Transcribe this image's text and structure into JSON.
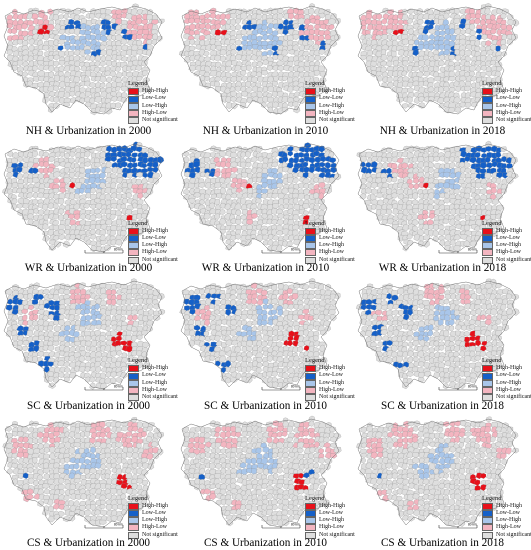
{
  "colors": {
    "high_high": "#e8101a",
    "low_low": "#1560c8",
    "low_high": "#a9c6ea",
    "high_low": "#f3b5c0",
    "not_significant": "#dedede",
    "border": "#8a8a8a"
  },
  "legend": {
    "title": "Legend",
    "items": [
      "High-High",
      "Low-Low",
      "Low-High",
      "High-Low",
      "Not significant"
    ]
  },
  "scale_label": "80 km",
  "panels": [
    {
      "caption": "NH & Urbanization in 2000",
      "pattern": "nh",
      "has_scale": false
    },
    {
      "caption": "NH & Urbanization in 2010",
      "pattern": "nh",
      "has_scale": false
    },
    {
      "caption": "NH & Urbanization in 2018",
      "pattern": "nh",
      "has_scale": false
    },
    {
      "caption": "WR & Urbanization in 2000",
      "pattern": "wr",
      "has_scale": true
    },
    {
      "caption": "WR & Urbanization in 2010",
      "pattern": "wr",
      "has_scale": true
    },
    {
      "caption": "WR & Urbanization in 2018",
      "pattern": "wr",
      "has_scale": true
    },
    {
      "caption": "SC & Urbanization in 2000",
      "pattern": "sc",
      "has_scale": true
    },
    {
      "caption": "SC & Urbanization in 2010",
      "pattern": "sc",
      "has_scale": true
    },
    {
      "caption": "SC & Urbanization in 2018",
      "pattern": "sc",
      "has_scale": true
    },
    {
      "caption": "CS & Urbanization in 2000",
      "pattern": "cs",
      "has_scale": true
    },
    {
      "caption": "CS & Urbanization in 2010",
      "pattern": "cs",
      "has_scale": true
    },
    {
      "caption": "CS & Urbanization in 2018",
      "pattern": "cs",
      "has_scale": true
    }
  ]
}
